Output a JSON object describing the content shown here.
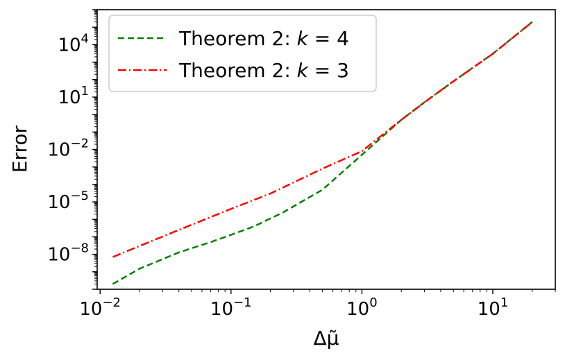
{
  "chart_data": {
    "type": "line",
    "xlabel": "Δμ̃",
    "ylabel": "Error",
    "xscale": "log",
    "yscale": "log",
    "xlim": [
      0.0095,
      30
    ],
    "ylim": [
      1e-10,
      1000000.0
    ],
    "grid": false,
    "legend_position": "top-left",
    "x_ticks": [
      {
        "base": "10",
        "exp": "−2",
        "value": 0.01
      },
      {
        "base": "10",
        "exp": "−1",
        "value": 0.1
      },
      {
        "base": "10",
        "exp": "0",
        "value": 1
      },
      {
        "base": "10",
        "exp": "1",
        "value": 10
      }
    ],
    "y_ticks": [
      {
        "base": "10",
        "exp": "−8",
        "value": 1e-08
      },
      {
        "base": "10",
        "exp": "−5",
        "value": 1e-05
      },
      {
        "base": "10",
        "exp": "−2",
        "value": 0.01
      },
      {
        "base": "10",
        "exp": "1",
        "value": 10
      },
      {
        "base": "10",
        "exp": "4",
        "value": 10000
      }
    ],
    "series": [
      {
        "name": "Theorem 2: k = 4",
        "legend_text": "Theorem 2: ",
        "legend_var": "k",
        "legend_eq": " = 4",
        "color": "#008000",
        "dash": "9,5",
        "x": [
          0.0125,
          0.02,
          0.04,
          0.07,
          0.1,
          0.15,
          0.25,
          0.5,
          1.0,
          2.0,
          3.0,
          5.0,
          10.0,
          20.0
        ],
        "y": [
          2e-10,
          1.5e-09,
          1.3e-08,
          5e-08,
          1.3e-07,
          4e-07,
          2.5e-06,
          5e-05,
          0.005,
          0.5,
          5,
          80,
          3000,
          200000
        ]
      },
      {
        "name": "Theorem 2: k = 3",
        "legend_text": "Theorem 2: ",
        "legend_var": "k",
        "legend_eq": " = 3",
        "color": "#ff0000",
        "dash": "12,4,2,4",
        "x": [
          0.0125,
          0.02,
          0.04,
          0.1,
          0.2,
          0.5,
          1.0,
          2.0,
          3.0,
          5.0,
          10.0,
          20.0
        ],
        "y": [
          7e-09,
          3e-08,
          2.5e-07,
          4e-06,
          3e-05,
          0.0008,
          0.008,
          0.5,
          5,
          80,
          3000,
          200000
        ]
      }
    ]
  }
}
